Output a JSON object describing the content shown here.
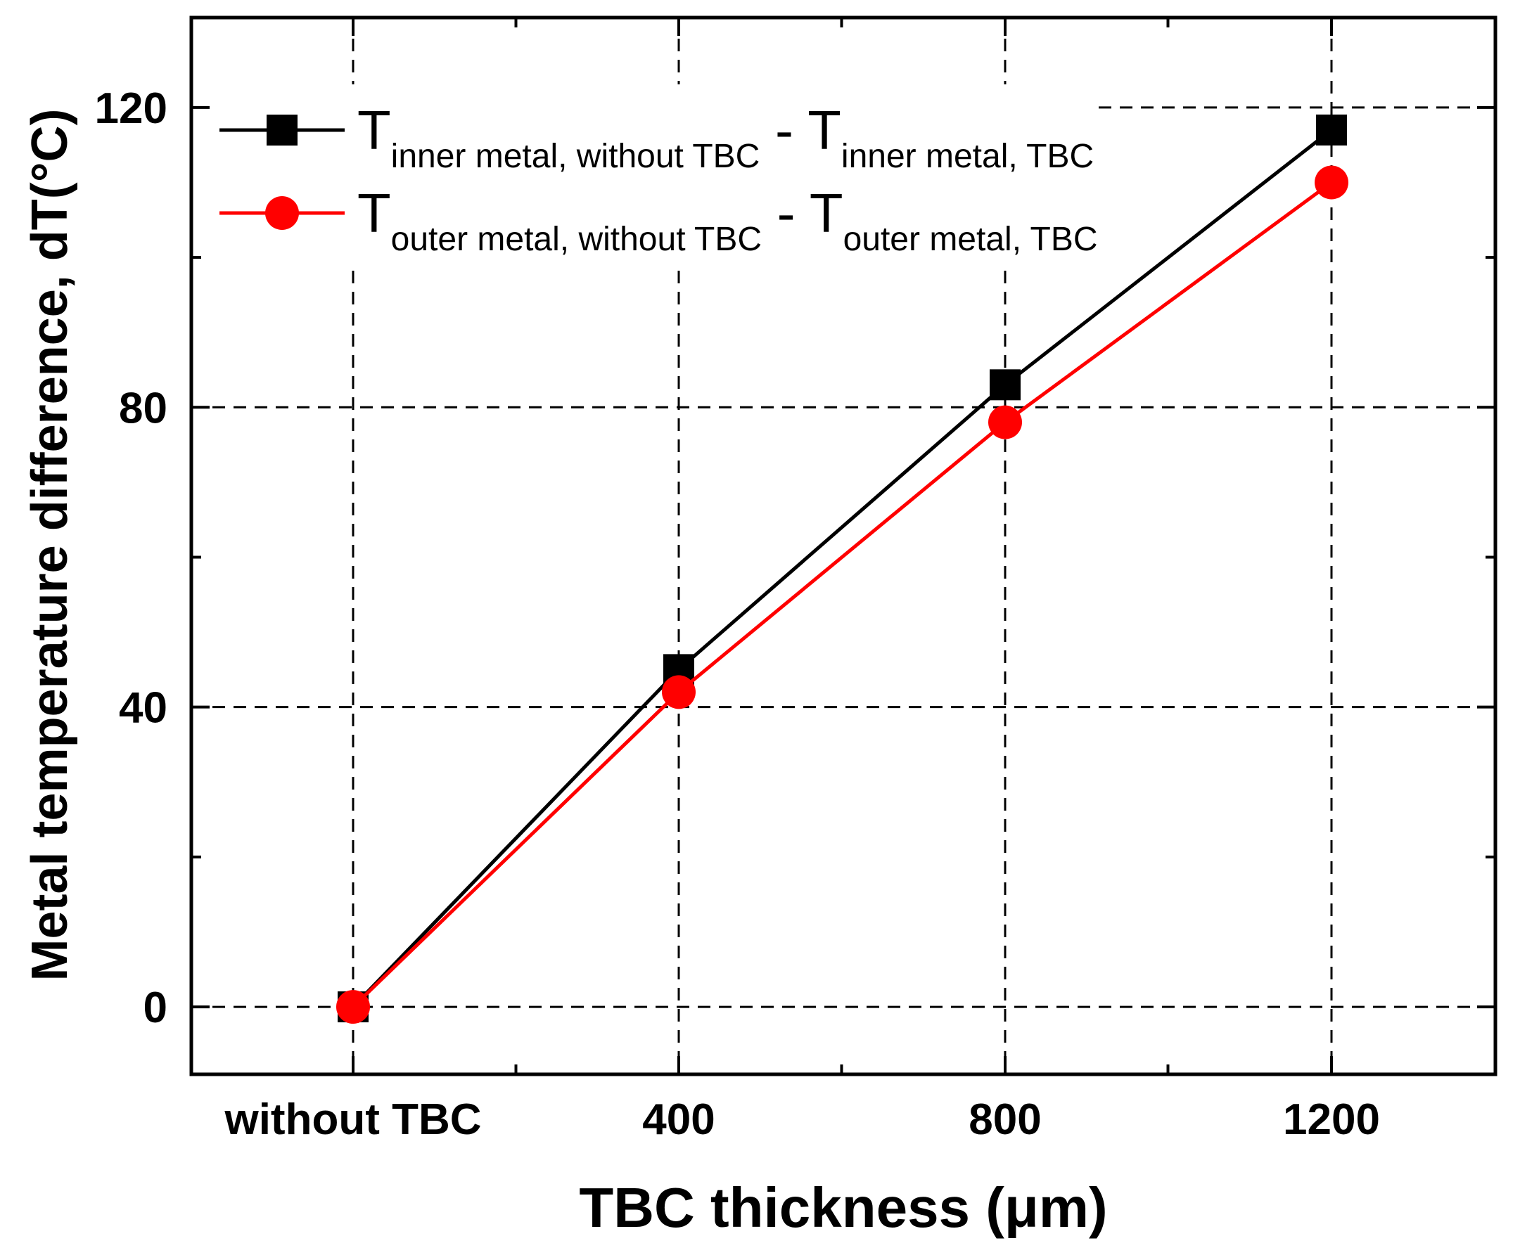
{
  "chart_data": {
    "type": "line",
    "categories": [
      "without TBC",
      "400",
      "800",
      "1200"
    ],
    "xlabel": "TBC thickness (μm)",
    "ylabel": "Metal temperature difference, dT(°C)",
    "ylim": [
      -9,
      132
    ],
    "yticks": [
      0,
      40,
      80,
      120
    ],
    "grid": "dashed",
    "legend_position": "top-left",
    "series": [
      {
        "name": "T inner metal, without TBC - T inner metal, TBC",
        "legend_main_1": "T",
        "legend_sub_1": "inner metal, without TBC",
        "legend_dash": " - ",
        "legend_main_2": "T",
        "legend_sub_2": "inner metal, TBC",
        "color": "#000000",
        "marker": "square",
        "values": [
          0,
          45,
          83,
          117
        ]
      },
      {
        "name": "T outer metal, without TBC - T outer metal, TBC",
        "legend_main_1": "T",
        "legend_sub_1": "outer metal, without TBC",
        "legend_dash": " - ",
        "legend_main_2": "T",
        "legend_sub_2": "outer metal, TBC",
        "color": "#ff0000",
        "marker": "circle",
        "values": [
          0,
          42,
          78,
          110
        ]
      }
    ]
  }
}
